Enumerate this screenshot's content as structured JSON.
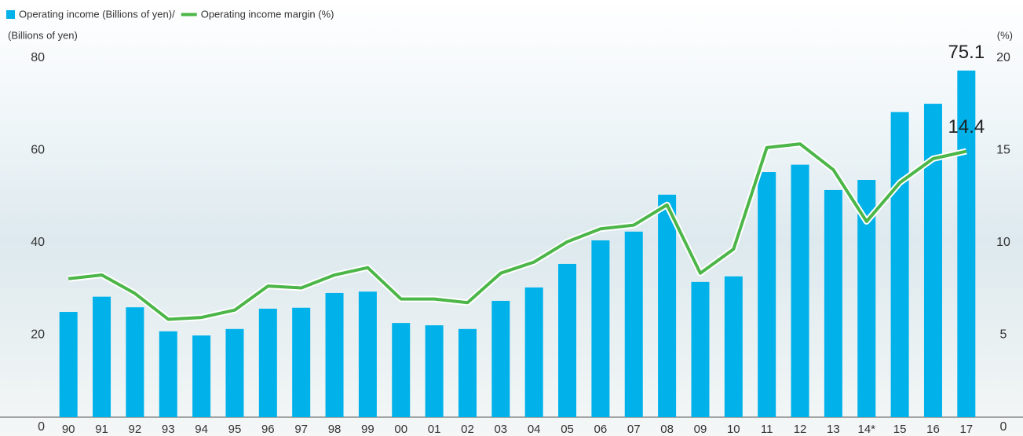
{
  "chart_data": {
    "type": "bar-line",
    "series": [
      {
        "name": "Operating income (Billions of yen)/",
        "color": "#00b1ea",
        "type": "bar",
        "values": [
          22.8,
          26.1,
          23.8,
          18.6,
          17.7,
          19.1,
          23.5,
          23.7,
          26.9,
          27.2,
          20.4,
          19.9,
          19.1,
          25.2,
          28.1,
          33.2,
          38.3,
          40.2,
          48.2,
          29.3,
          30.5,
          53.1,
          54.7,
          49.2,
          51.4,
          66.1,
          67.9,
          75.1
        ]
      },
      {
        "name": "Operating income margin (%)",
        "color": "#4cb648",
        "type": "line",
        "axis": "y2",
        "values": [
          7.5,
          7.7,
          6.7,
          5.3,
          5.4,
          5.8,
          7.1,
          7.0,
          7.7,
          8.1,
          6.4,
          6.4,
          6.2,
          7.8,
          8.4,
          9.5,
          10.2,
          10.4,
          11.5,
          7.8,
          9.1,
          14.6,
          14.8,
          13.4,
          10.6,
          12.7,
          14.0,
          14.4
        ]
      }
    ],
    "categories": [
      "90",
      "91",
      "92",
      "93",
      "94",
      "95",
      "96",
      "97",
      "98",
      "99",
      "00",
      "01",
      "02",
      "03",
      "04",
      "05",
      "06",
      "07",
      "08",
      "09",
      "10",
      "11",
      "12",
      "13",
      "14*",
      "15",
      "16",
      "17"
    ],
    "y_label": "(Billions of yen)",
    "y2_label": "(%)",
    "ylim": [
      0,
      80
    ],
    "yticks": [
      0,
      20,
      40,
      60,
      80
    ],
    "y2lim": [
      0,
      20
    ],
    "y2ticks": [
      0,
      5,
      10,
      15,
      20
    ],
    "legend": "top-left"
  }
}
